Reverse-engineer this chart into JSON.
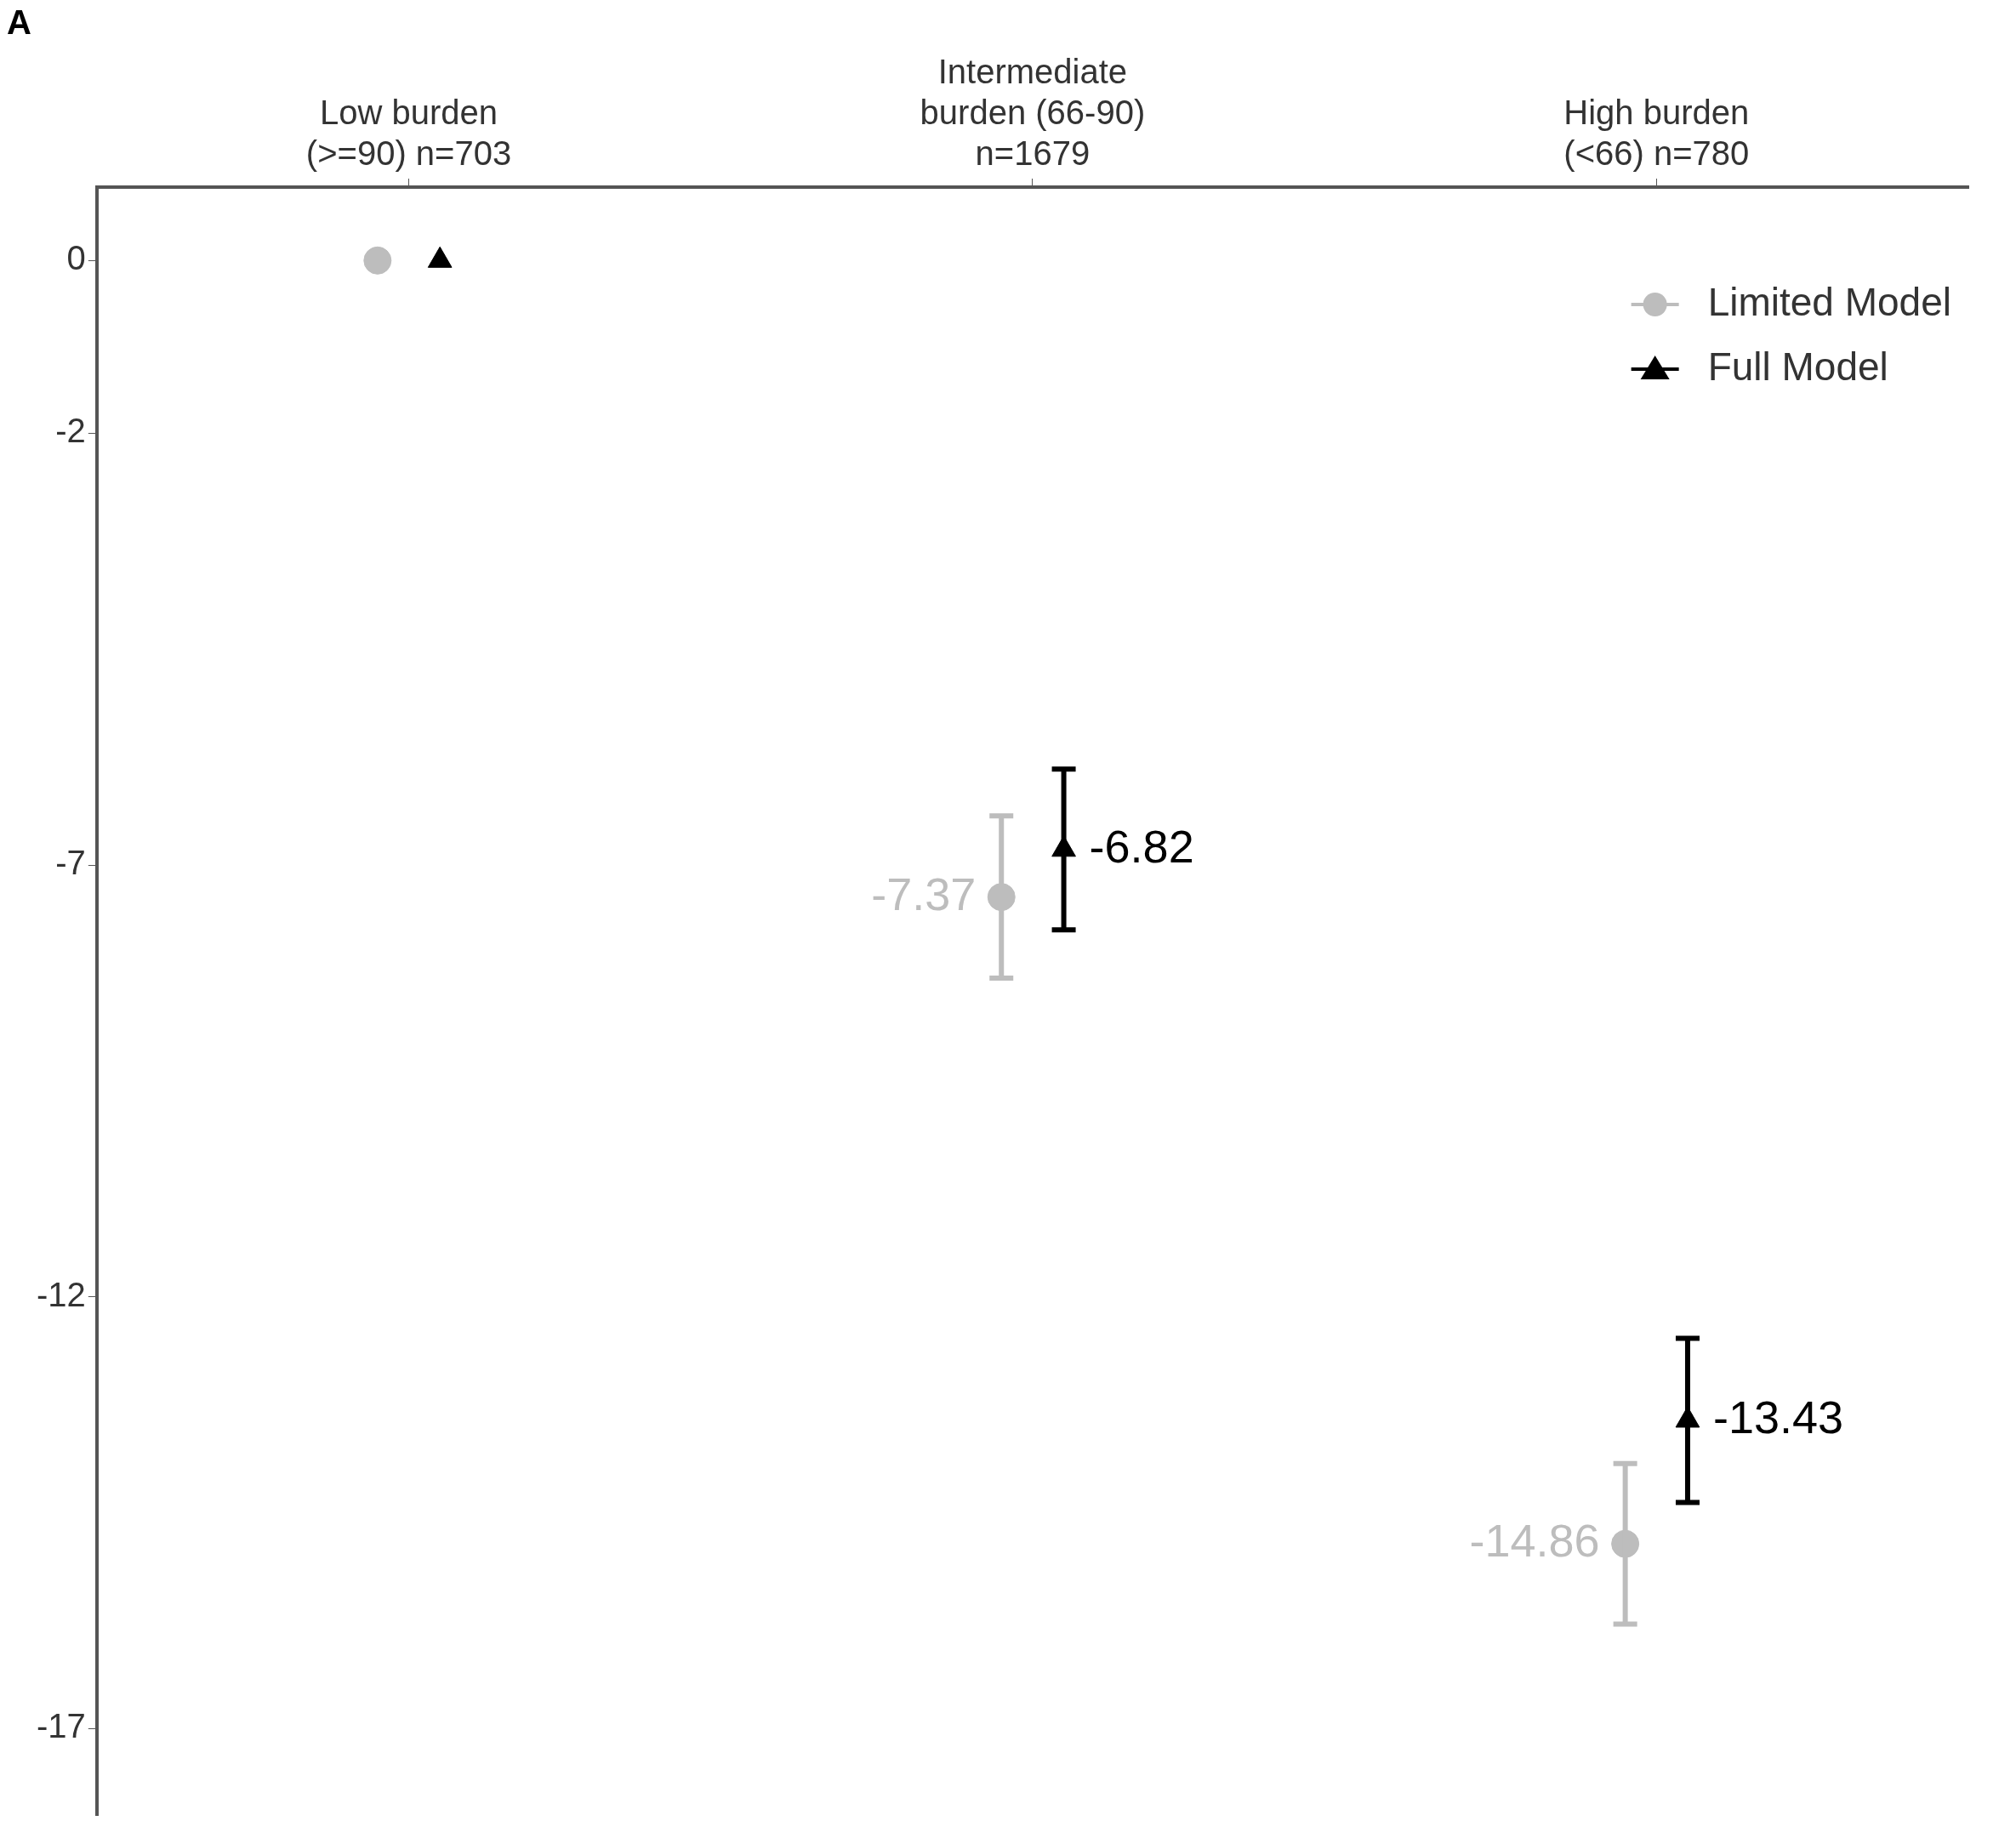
{
  "chart_data": {
    "type": "scatter",
    "categories": [
      "Low burden\n(>=90) n=703",
      "Intermediate\nburden (66-90)\nn=1679",
      "High burden\n(<66) n=780"
    ],
    "series": [
      {
        "name": "Limited Model",
        "color": "#bdbdbd",
        "marker": "circle",
        "values": [
          0,
          -7.37,
          -14.86
        ],
        "errors": [
          null,
          0.94,
          0.93
        ],
        "value_labels": [
          null,
          "-7.37",
          "-14.86"
        ]
      },
      {
        "name": "Full Model",
        "color": "#000000",
        "marker": "triangle",
        "values": [
          0,
          -6.82,
          -13.43
        ],
        "errors": [
          null,
          0.93,
          0.95
        ],
        "value_labels": [
          null,
          "-6.82",
          "-13.43"
        ]
      }
    ],
    "ylim": [
      -18,
      0.85
    ],
    "yticks": [
      0,
      -2,
      -7,
      -12,
      -17
    ],
    "grid": false,
    "legend": "top right",
    "annotations": [
      "A"
    ]
  }
}
